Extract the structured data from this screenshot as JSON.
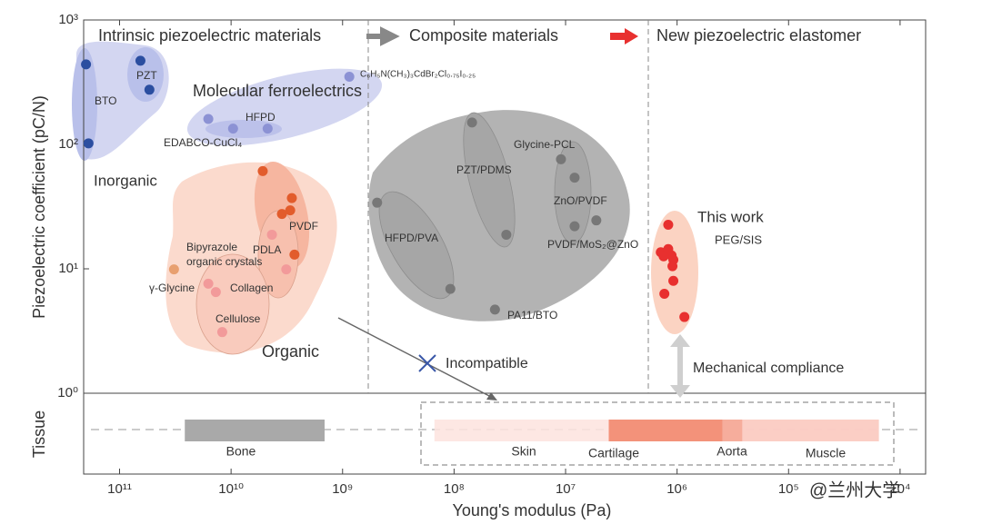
{
  "chart_data": {
    "type": "scatter",
    "x_label": "Young's modulus (Pa)",
    "y_label": "Piezoelectric coefficient (pC/N)",
    "xscale": "log",
    "yscale": "log",
    "xlim": [
      210000000000.0,
      5900.0
    ],
    "ylim": [
      1,
      1000
    ],
    "xticks": [
      {
        "value": 100000000000.0,
        "label": "10¹¹"
      },
      {
        "value": 10000000000.0,
        "label": "10¹⁰"
      },
      {
        "value": 1000000000.0,
        "label": "10⁹"
      },
      {
        "value": 100000000.0,
        "label": "10⁸"
      },
      {
        "value": 10000000.0,
        "label": "10⁷"
      },
      {
        "value": 1000000.0,
        "label": "10⁶"
      },
      {
        "value": 100000.0,
        "label": "10⁵"
      },
      {
        "value": 10000.0,
        "label": "10⁴"
      }
    ],
    "yticks": [
      {
        "value": 1,
        "label": "10⁰"
      },
      {
        "value": 10,
        "label": "10¹"
      },
      {
        "value": 100,
        "label": "10²"
      },
      {
        "value": 1000,
        "label": "10³"
      }
    ],
    "series": [
      {
        "name": "Inorganic",
        "color": "#2b4ea0",
        "x": [
          200000000000.0,
          190000000000.0,
          65000000000.0,
          54000000000.0
        ],
        "values": [
          440,
          102,
          470,
          275
        ]
      },
      {
        "name": "Molecular ferroelectrics",
        "color": "#8c92d4",
        "x": [
          870000000.0,
          16000000000.0,
          9600000000.0,
          4700000000.0
        ],
        "values": [
          350,
          160,
          134,
          134
        ]
      },
      {
        "name": "Organic",
        "color": "#e25c2c",
        "colors": [
          "#e25c2c",
          "#e25c2c",
          "#e25c2c",
          "#e25c2c",
          "#e25c2c",
          "#f29a9a",
          "#f29a9a",
          "#e8a070",
          "#f29a9a",
          "#f29a9a",
          "#f29a9a"
        ],
        "x": [
          5200000000.0,
          2850000000.0,
          2950000000.0,
          3500000000.0,
          2700000000.0,
          4300000000.0,
          3200000000.0,
          32500000000.0,
          16000000000.0,
          13700000000.0,
          12000000000.0
        ],
        "values": [
          61,
          37,
          29.5,
          27.6,
          13,
          18.8,
          9.9,
          9.9,
          7.6,
          6.5,
          3.1
        ]
      },
      {
        "color": "#777777",
        "x": [
          69000000.0,
          11000000.0,
          8300000.0,
          8300000.0,
          5300000.0,
          34000000.0,
          490000000.0,
          108000000.0,
          43000000.0
        ],
        "values": [
          150,
          76,
          54,
          22,
          24.5,
          18.8,
          34,
          6.9,
          4.7
        ]
      },
      {
        "name": "This work",
        "color": "#e8302f",
        "x": [
          1200000.0,
          1400000.0,
          1200000.0,
          1120000.0,
          1320000.0,
          1080000.0,
          1100000.0,
          1080000.0,
          1300000.0,
          860000.0
        ],
        "values": [
          22.6,
          13.6,
          14.4,
          12.8,
          12.6,
          11.8,
          10.5,
          8.0,
          6.3,
          4.1
        ]
      }
    ],
    "annotations": [
      "Intrinsic piezoelectric materials",
      "Composite materials",
      "New piezoelectric elastomer",
      "BTO",
      "PZT",
      "C₆H₅N(CH₃)₃CdBr₂Cl₀.₇₅I₀.₂₅",
      "HFPD",
      "EDABCO-CuCl₄",
      "PVDF",
      "PDLA",
      "Bipyrazole",
      "organic crystals",
      "γ-Glycine",
      "Collagen",
      "Cellulose",
      "PZT/PDMS",
      "Glycine-PCL",
      "ZnO/PVDF",
      "PVDF/MoS₂@ZnO",
      "HFPD/PVA",
      "PA11/BTO",
      "PEG/SIS",
      "Incompatible",
      "Mechanical compliance",
      "@兰州大学"
    ],
    "tissue_panel": {
      "label": "Tissue",
      "bands": [
        {
          "name": "Bone",
          "range": [
            26000000000.0,
            1450000000.0
          ],
          "color": "#a9a9a9"
        },
        {
          "name": "Skin",
          "range": [
            150000000.0,
            15500.0
          ],
          "color": "#fde3de"
        },
        {
          "name": "Muscle",
          "range": [
            260000.0,
            15500.0
          ],
          "color": "#fac9bf"
        },
        {
          "name": "Cartilage",
          "range": [
            4100000.0,
            390000.0
          ],
          "color": "#f3927a"
        },
        {
          "name": "Aorta",
          "range": [
            390000.0,
            260000.0
          ],
          "color": "#f6ad9c"
        }
      ]
    }
  }
}
